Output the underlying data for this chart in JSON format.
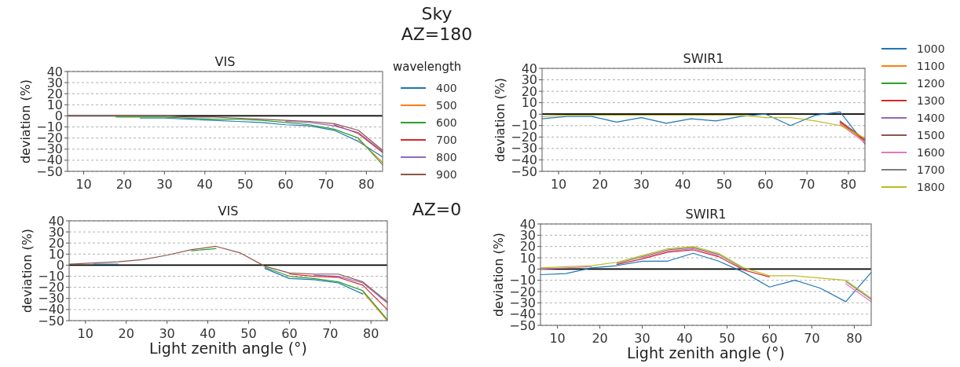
{
  "chart_data": [
    {
      "type": "line",
      "title": "VIS",
      "ylabel": "deviation (%)",
      "annotations": [
        "Sky",
        "AZ=180"
      ],
      "legend": "right",
      "legend_title": "wavelength",
      "grid": "y",
      "x": [
        6,
        12,
        18,
        24,
        30,
        36,
        42,
        48,
        54,
        60,
        66,
        72,
        78,
        84
      ],
      "xlim": [
        6,
        84
      ],
      "xticks": [
        10,
        20,
        30,
        40,
        50,
        60,
        70,
        80
      ],
      "ylim": [
        -50,
        40
      ],
      "yticks": [
        {
          "value": -50,
          "label": "−50"
        },
        {
          "value": -40,
          "label": "−40"
        },
        {
          "value": -30,
          "label": "−30"
        },
        {
          "value": -20,
          "label": "−20"
        },
        {
          "value": -10,
          "label": "−10"
        },
        0,
        10,
        20,
        30,
        40
      ],
      "ref_lines": [
        {
          "axis": "y",
          "value": 0,
          "color": "#000000"
        }
      ],
      "series": [
        {
          "name": "400",
          "color": "#1f77b4",
          "values": [
            null,
            null,
            null,
            -2,
            -2,
            -3,
            -4,
            -5,
            -6,
            -8,
            -9,
            -13,
            -23,
            -37
          ]
        },
        {
          "name": "500",
          "color": "#ff7f0e",
          "values": [
            null,
            null,
            null,
            null,
            null,
            null,
            null,
            null,
            null,
            null,
            null,
            null,
            -21,
            -42
          ]
        },
        {
          "name": "600",
          "color": "#2ca02c",
          "values": [
            null,
            null,
            -1,
            -1,
            -1,
            -2,
            -3,
            -3,
            -4,
            -6,
            -8,
            -12,
            -20,
            -44
          ]
        },
        {
          "name": "700",
          "color": "#d62728",
          "values": [
            null,
            null,
            null,
            null,
            null,
            null,
            null,
            null,
            null,
            null,
            null,
            -8,
            -16,
            -33
          ]
        },
        {
          "name": "800",
          "color": "#9467bd",
          "values": [
            null,
            null,
            null,
            null,
            null,
            null,
            null,
            null,
            null,
            -5,
            -6,
            -9,
            -15,
            -32
          ]
        },
        {
          "name": "900",
          "color": "#8c564b",
          "values": [
            0,
            0,
            0,
            0,
            0,
            -1,
            -1,
            -2,
            -3,
            -4,
            -5,
            -7,
            -13,
            -31
          ]
        }
      ]
    },
    {
      "type": "line",
      "title": "SWIR1",
      "ylabel": "deviation (%)",
      "legend": "right",
      "grid": "y",
      "x": [
        6,
        12,
        18,
        24,
        30,
        36,
        42,
        48,
        54,
        60,
        66,
        72,
        78,
        84
      ],
      "xlim": [
        6,
        84
      ],
      "xticks": [
        10,
        20,
        30,
        40,
        50,
        60,
        70,
        80
      ],
      "ylim": [
        -50,
        40
      ],
      "yticks": [
        {
          "value": -50,
          "label": "−50"
        },
        {
          "value": -40,
          "label": "−40"
        },
        {
          "value": -30,
          "label": "−30"
        },
        {
          "value": -20,
          "label": "−20"
        },
        {
          "value": -10,
          "label": "−10"
        },
        0,
        10,
        20,
        30,
        40
      ],
      "ref_lines": [
        {
          "axis": "y",
          "value": 0,
          "color": "#000000"
        }
      ],
      "series": [
        {
          "name": "1000",
          "color": "#1f77b4",
          "values": [
            -4,
            -2,
            -2,
            -7,
            -3,
            -8,
            -4,
            -6,
            -2,
            0,
            -10,
            -1,
            2,
            -26
          ]
        },
        {
          "name": "1100",
          "color": "#ff7f0e",
          "values": [
            null,
            null,
            null,
            null,
            null,
            null,
            null,
            null,
            null,
            null,
            null,
            null,
            -8,
            -24
          ]
        },
        {
          "name": "1200",
          "color": "#2ca02c",
          "values": [
            null,
            null,
            null,
            null,
            null,
            null,
            null,
            null,
            null,
            null,
            null,
            null,
            null,
            null
          ]
        },
        {
          "name": "1300",
          "color": "#d62728",
          "values": [
            null,
            null,
            null,
            null,
            null,
            null,
            null,
            null,
            null,
            null,
            null,
            null,
            -7,
            -23
          ]
        },
        {
          "name": "1400",
          "color": "#9467bd",
          "values": [
            null,
            null,
            null,
            null,
            null,
            null,
            null,
            null,
            null,
            null,
            null,
            null,
            null,
            null
          ]
        },
        {
          "name": "1500",
          "color": "#8c564b",
          "values": [
            null,
            null,
            null,
            null,
            null,
            null,
            null,
            null,
            null,
            null,
            null,
            null,
            -6,
            -22
          ]
        },
        {
          "name": "1600",
          "color": "#e377c2",
          "values": [
            null,
            null,
            null,
            null,
            null,
            null,
            null,
            null,
            null,
            null,
            null,
            null,
            -9,
            -25
          ]
        },
        {
          "name": "1700",
          "color": "#7f7f7f",
          "values": [
            null,
            null,
            null,
            null,
            null,
            null,
            null,
            null,
            null,
            null,
            null,
            null,
            null,
            null
          ]
        },
        {
          "name": "1800",
          "color": "#bcbd22",
          "values": [
            -2,
            -1,
            -1,
            -1,
            -1,
            -1,
            -1,
            -1,
            -1,
            -3,
            -3,
            -6,
            -10,
            -21
          ]
        }
      ]
    },
    {
      "type": "line",
      "title": "VIS",
      "xlabel": "Light zenith angle (°)",
      "ylabel": "deviation (%)",
      "annotations": [
        "AZ=0"
      ],
      "grid": "y",
      "x": [
        6,
        12,
        18,
        24,
        30,
        36,
        42,
        48,
        54,
        60,
        66,
        72,
        78,
        84
      ],
      "xlim": [
        6,
        84
      ],
      "xticks": [
        10,
        20,
        30,
        40,
        50,
        60,
        70,
        80
      ],
      "ylim": [
        -50,
        40
      ],
      "yticks": [
        {
          "value": -50,
          "label": "−50"
        },
        {
          "value": -40,
          "label": "−40"
        },
        {
          "value": -30,
          "label": "−30"
        },
        {
          "value": -20,
          "label": "−20"
        },
        {
          "value": -10,
          "label": "−10"
        },
        0,
        10,
        20,
        30,
        40
      ],
      "ref_lines": [
        {
          "axis": "y",
          "value": 0,
          "color": "#000000"
        }
      ],
      "series": [
        {
          "color": "#1f77b4",
          "values": [
            null,
            1,
            1,
            null,
            null,
            null,
            null,
            null,
            -3,
            -12,
            -13,
            -16,
            -26,
            null
          ]
        },
        {
          "color": "#ff7f0e",
          "values": [
            null,
            null,
            null,
            null,
            null,
            null,
            null,
            null,
            null,
            null,
            null,
            null,
            -24,
            -50
          ]
        },
        {
          "color": "#2ca02c",
          "values": [
            null,
            null,
            null,
            null,
            null,
            13,
            15,
            null,
            -2,
            -10,
            -12,
            -15,
            -23,
            -49
          ]
        },
        {
          "color": "#d62728",
          "values": [
            null,
            null,
            null,
            null,
            null,
            null,
            null,
            null,
            null,
            -8,
            -10,
            -11,
            -18,
            -40
          ]
        },
        {
          "color": "#9467bd",
          "values": [
            null,
            null,
            null,
            null,
            null,
            null,
            null,
            null,
            null,
            null,
            -9,
            -10,
            -16,
            -34
          ]
        },
        {
          "color": "#8c564b",
          "values": [
            1,
            2,
            3,
            5,
            9,
            14,
            17,
            11,
            -1,
            -7,
            -8,
            -8,
            -15,
            -33
          ]
        }
      ]
    },
    {
      "type": "line",
      "title": "SWIR1",
      "xlabel": "Light zenith angle (°)",
      "ylabel": "deviation (%)",
      "grid": "y",
      "x": [
        6,
        12,
        18,
        24,
        30,
        36,
        42,
        48,
        54,
        60,
        66,
        72,
        78,
        84
      ],
      "xlim": [
        6,
        84
      ],
      "xticks": [
        10,
        20,
        30,
        40,
        50,
        60,
        70,
        80
      ],
      "ylim": [
        -50,
        40
      ],
      "yticks": [
        {
          "value": -50,
          "label": "−50"
        },
        {
          "value": -40,
          "label": "−40"
        },
        {
          "value": -30,
          "label": "−30"
        },
        {
          "value": -20,
          "label": "−20"
        },
        {
          "value": -10,
          "label": "−10"
        },
        0,
        10,
        20,
        30,
        40
      ],
      "ref_lines": [
        {
          "axis": "y",
          "value": 0,
          "color": "#000000"
        }
      ],
      "series": [
        {
          "color": "#1f77b4",
          "values": [
            -5,
            -4,
            1,
            3,
            7,
            7,
            14,
            7,
            -3,
            -16,
            -10,
            -17,
            -29,
            -3
          ]
        },
        {
          "color": "#d62728",
          "values": [
            null,
            null,
            null,
            4,
            9,
            15,
            17,
            11,
            -1,
            -7,
            null,
            null,
            null,
            null
          ]
        },
        {
          "color": "#e377c2",
          "values": [
            0,
            1,
            2,
            null,
            10,
            16,
            18,
            12,
            null,
            null,
            null,
            null,
            -13,
            -29
          ]
        },
        {
          "color": "#7f7f7f",
          "values": [
            null,
            null,
            null,
            5,
            11,
            17,
            19,
            13,
            0,
            null,
            null,
            null,
            -11,
            -27
          ]
        },
        {
          "color": "#bcbd22",
          "values": [
            1,
            2,
            3,
            6,
            12,
            18,
            20,
            14,
            1,
            -6,
            -6,
            -8,
            -10,
            -26
          ]
        }
      ]
    }
  ]
}
